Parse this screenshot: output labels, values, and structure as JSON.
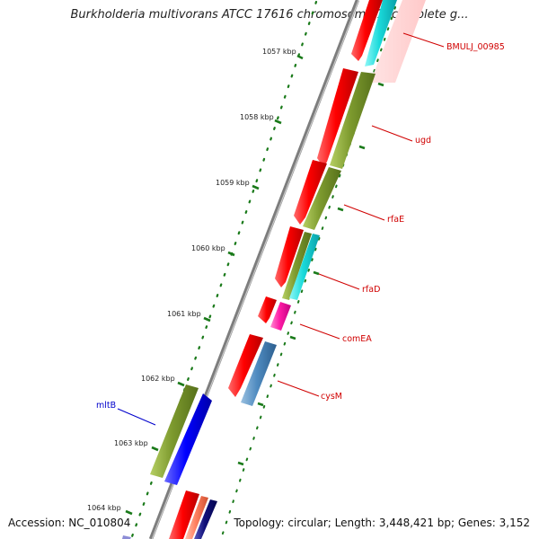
{
  "title": "Burkholderia multivorans ATCC 17616 chromosome 1, complete g...",
  "footer": {
    "accession": "Accession: NC_010804",
    "summary": "Topology: circular; Length: 3,448,421 bp; Genes: 3,152"
  },
  "colors": {
    "backbone": "#808080",
    "tick": "#1a7a1a",
    "label_red": "#d00000",
    "label_blue": "#0000cc"
  },
  "kbp_ticks": [
    "1057 kbp",
    "1058 kbp",
    "1059 kbp",
    "1060 kbp",
    "1061 kbp",
    "1062 kbp",
    "1063 kbp",
    "1064 kbp"
  ],
  "gene_labels": [
    {
      "text": "BMULJ_00985",
      "color": "#d00000"
    },
    {
      "text": "ugd",
      "color": "#d00000"
    },
    {
      "text": "rfaE",
      "color": "#d00000"
    },
    {
      "text": "rfaD",
      "color": "#d00000"
    },
    {
      "text": "comEA",
      "color": "#d00000"
    },
    {
      "text": "cysM",
      "color": "#d00000"
    },
    {
      "text": "mltB",
      "color": "#0000cc"
    }
  ]
}
